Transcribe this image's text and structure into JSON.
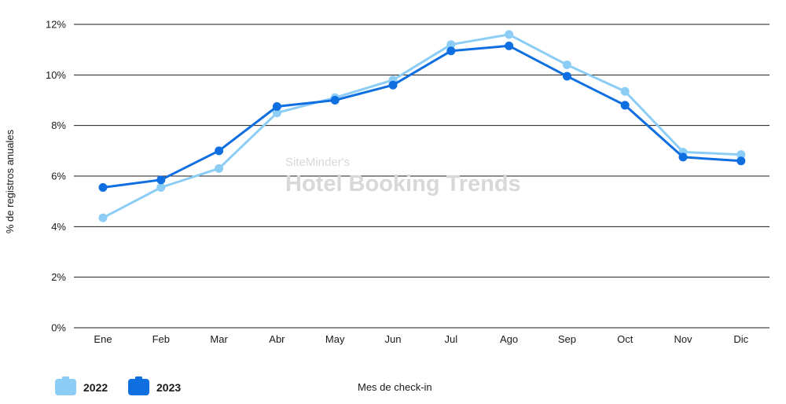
{
  "chart_data": {
    "type": "line",
    "categories": [
      "Ene",
      "Feb",
      "Mar",
      "Abr",
      "May",
      "Jun",
      "Jul",
      "Ago",
      "Sep",
      "Oct",
      "Nov",
      "Dic"
    ],
    "series": [
      {
        "name": "2022",
        "color": "#8ccdf6",
        "values": [
          4.35,
          5.55,
          6.3,
          8.5,
          9.1,
          9.8,
          11.2,
          11.6,
          10.4,
          9.35,
          6.95,
          6.85
        ]
      },
      {
        "name": "2023",
        "color": "#0f6fe0",
        "values": [
          5.55,
          5.85,
          7.0,
          8.75,
          9.0,
          9.6,
          10.95,
          11.15,
          9.95,
          8.8,
          6.75,
          6.6
        ]
      }
    ],
    "ylim": [
      0,
      12
    ],
    "yticks": [
      "0%",
      "2%",
      "4%",
      "6%",
      "8%",
      "10%",
      "12%"
    ],
    "ylabel": "% de registros anuales",
    "xlabel": "Mes de check-in",
    "grid": "horizontal",
    "legend_position": "bottom-left"
  },
  "watermark": {
    "line1": "SiteMinder's",
    "line2": "Hotel Booking Trends"
  }
}
